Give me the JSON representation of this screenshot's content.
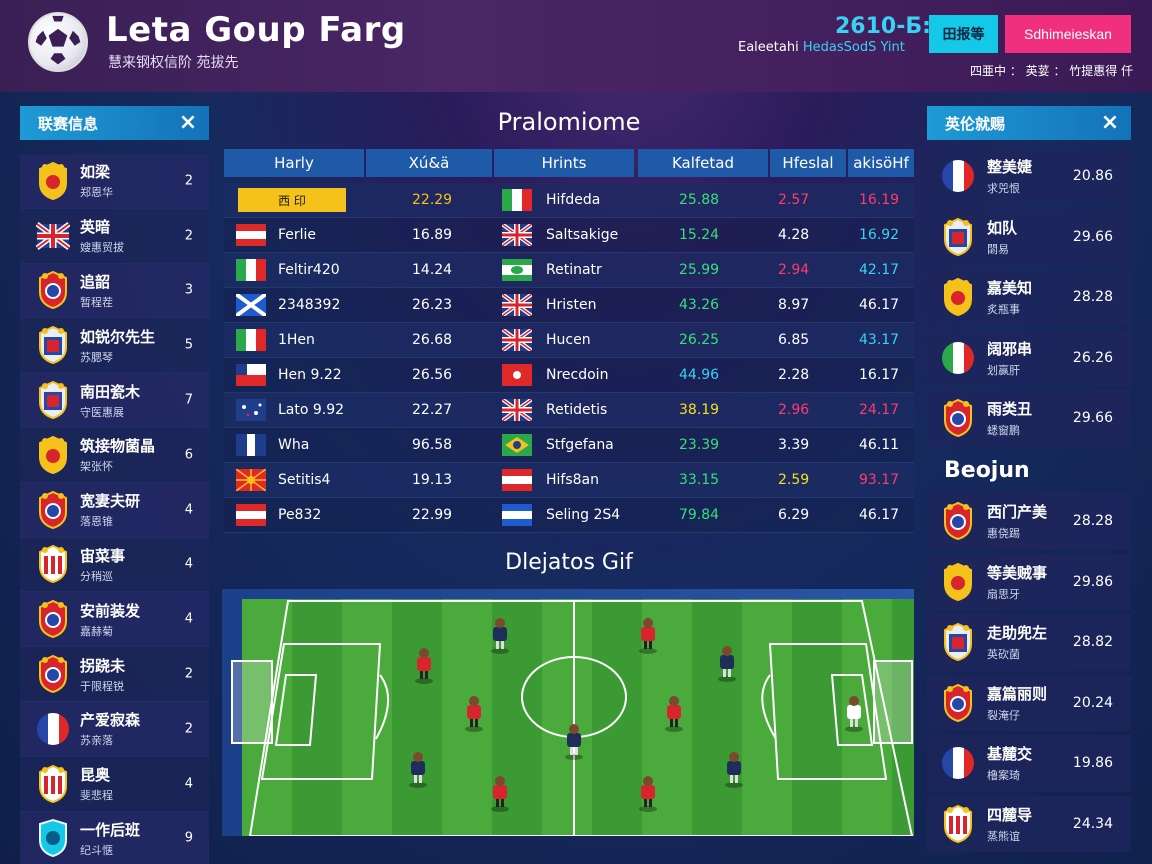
{
  "header": {
    "title": "Leta Goup Farg",
    "subtitle": "慧来钢权信阶 苑拔先",
    "score": "2610-Б:",
    "sub_prefix": "Ealeetahi",
    "sub_accent": "HedasSodS Yint",
    "btn_primary": "田报等",
    "btn_secondary": "Sdhimeieskan",
    "right_text": "四亜中 ： 英荽 ： 竹提惠得 仟"
  },
  "left_panel": {
    "title": "联赛信息",
    "close_icon": "×",
    "items": [
      {
        "name": "如梁",
        "sub": "郑恩华",
        "count": "2",
        "badge": "crest-yellow"
      },
      {
        "name": "英暗",
        "sub": "嫂惠贸拔",
        "count": "2",
        "badge": "uk"
      },
      {
        "name": "追韶",
        "sub": "暂程茬",
        "count": "3",
        "badge": "crest-red"
      },
      {
        "name": "如锐尔先生",
        "sub": "苏腮琴",
        "count": "5",
        "badge": "crest-blue"
      },
      {
        "name": "南田瓷木",
        "sub": "守医惠展",
        "count": "7",
        "badge": "crest-blue"
      },
      {
        "name": "筑接物菌晶",
        "sub": "架张怀",
        "count": "6",
        "badge": "crest-yellow"
      },
      {
        "name": "宽妻夫研",
        "sub": "落恩锥",
        "count": "4",
        "badge": "crest-red"
      },
      {
        "name": "宙菜事",
        "sub": "分稍巡",
        "count": "4",
        "badge": "crest-stripe"
      },
      {
        "name": "安前装发",
        "sub": "嘉赫菊",
        "count": "4",
        "badge": "crest-red"
      },
      {
        "name": "拐跷未",
        "sub": "于限程锐",
        "count": "2",
        "badge": "crest-red"
      },
      {
        "name": "产爱寂森",
        "sub": "苏亲落",
        "count": "2",
        "badge": "fr"
      },
      {
        "name": "昆奥",
        "sub": "斐悲程",
        "count": "4",
        "badge": "crest-stripe"
      },
      {
        "name": "一作后班",
        "sub": "纪斗惬",
        "count": "9",
        "badge": "crest-cyan"
      }
    ]
  },
  "center": {
    "title": "Pralomiome",
    "columns": [
      "Harly",
      "Xú&ä",
      "Hrints",
      "Kalfetad",
      "Hfeslal",
      "akisöHf"
    ],
    "rows": [
      {
        "tag": "西 印",
        "left_flag": "",
        "left": "",
        "v1": "22.29",
        "right_flag": "it",
        "right": "Hifdeda",
        "c1": "25.88",
        "c2": "2.57",
        "c3": "16.19",
        "c1col": "#35e07a",
        "c2col": "#ff3b6b",
        "c3col": "#ff3b6b",
        "v1col": "#f4c21a"
      },
      {
        "tag": "",
        "left_flag": "at",
        "left": "Ferlie",
        "v1": "16.89",
        "right_flag": "uk",
        "right": "Saltsakige",
        "c1": "15.24",
        "c2": "4.28",
        "c3": "16.92",
        "c1col": "#35e07a",
        "c2col": "#ffffff",
        "c3col": "#39d1f4",
        "v1col": "#ffffff"
      },
      {
        "tag": "",
        "left_flag": "it",
        "left": "Feltir420",
        "v1": "14.24",
        "right_flag": "br",
        "right": "Retinatr",
        "c1": "25.99",
        "c2": "2.94",
        "c3": "42.17",
        "c1col": "#35e07a",
        "c2col": "#ff3b6b",
        "c3col": "#39d1f4",
        "v1col": "#ffffff"
      },
      {
        "tag": "",
        "left_flag": "sc",
        "left": "2348392",
        "v1": "26.23",
        "right_flag": "uk",
        "right": "Hristen",
        "c1": "43.26",
        "c2": "8.97",
        "c3": "46.17",
        "c1col": "#35e07a",
        "c2col": "#ffffff",
        "c3col": "#ffffff",
        "v1col": "#ffffff"
      },
      {
        "tag": "",
        "left_flag": "it",
        "left": "1Hen",
        "v1": "26.68",
        "right_flag": "uk",
        "right": "Hucen",
        "c1": "26.25",
        "c2": "6.85",
        "c3": "43.17",
        "c1col": "#35e07a",
        "c2col": "#ffffff",
        "c3col": "#39d1f4",
        "v1col": "#ffffff"
      },
      {
        "tag": "",
        "left_flag": "cl",
        "left": "Hen 9.22",
        "v1": "26.56",
        "right_flag": "hk",
        "right": "Nrecdoin",
        "c1": "44.96",
        "c2": "2.28",
        "c3": "16.17",
        "c1col": "#39d1f4",
        "c2col": "#ffffff",
        "c3col": "#ffffff",
        "v1col": "#ffffff"
      },
      {
        "tag": "",
        "left_flag": "au",
        "left": "Lato 9.92",
        "v1": "22.27",
        "right_flag": "uk",
        "right": "Retidetis",
        "c1": "38.19",
        "c2": "2.96",
        "c3": "24.17",
        "c1col": "#f4e01a",
        "c2col": "#ff3b6b",
        "c3col": "#ff3b6b",
        "v1col": "#ffffff"
      },
      {
        "tag": "",
        "left_flag": "gu",
        "left": "Wha",
        "v1": "96.58",
        "right_flag": "brz",
        "right": "Stfgefana",
        "c1": "23.39",
        "c2": "3.39",
        "c3": "46.11",
        "c1col": "#35e07a",
        "c2col": "#ffffff",
        "c3col": "#ffffff",
        "v1col": "#ffffff"
      },
      {
        "tag": "",
        "left_flag": "mk",
        "left": "Setitis4",
        "v1": "19.13",
        "right_flag": "at",
        "right": "Hifs8an",
        "c1": "33.15",
        "c2": "2.59",
        "c3": "93.17",
        "c1col": "#35e07a",
        "c2col": "#f4e01a",
        "c3col": "#ff3b6b",
        "v1col": "#ffffff"
      },
      {
        "tag": "",
        "left_flag": "at",
        "left": "Pe832",
        "v1": "22.99",
        "right_flag": "hn",
        "right": "Seling 2S4",
        "c1": "79.84",
        "c2": "6.29",
        "c3": "46.17",
        "c1col": "#35e07a",
        "c2col": "#ffffff",
        "c3col": "#ffffff",
        "v1col": "#ffffff"
      }
    ],
    "pitch_title": "Dlejatos Gif"
  },
  "right_panel": {
    "title": "英伦就赐",
    "close_icon": "×",
    "items": [
      {
        "name": "整美婕",
        "sub": "求兕恨",
        "value": "20.86",
        "badge": "fr"
      },
      {
        "name": "如队",
        "sub": "閟易",
        "value": "29.66",
        "badge": "crest-blue"
      },
      {
        "name": "嘉美知",
        "sub": "炙瓶事",
        "value": "28.28",
        "badge": "crest-yellow"
      },
      {
        "name": "阔邪串",
        "sub": "划赢肝",
        "value": "26.26",
        "badge": "it"
      },
      {
        "name": "雨类丑",
        "sub": "蟋窗鹏",
        "value": "29.66",
        "badge": "crest-red"
      }
    ],
    "section_title": "Beojun",
    "items2": [
      {
        "name": "西门产美",
        "sub": "惠侥踢",
        "value": "28.28",
        "badge": "crest-red"
      },
      {
        "name": "等美贼事",
        "sub": "扇思牙",
        "value": "29.86",
        "badge": "crest-yellow"
      },
      {
        "name": "走助兜左",
        "sub": "英砍菌",
        "value": "28.82",
        "badge": "crest-blue"
      },
      {
        "name": "嘉篇丽则",
        "sub": "裂淹仔",
        "value": "20.24",
        "badge": "crest-red"
      },
      {
        "name": "基麓交",
        "sub": "橹案琦",
        "value": "19.86",
        "badge": "fr"
      },
      {
        "name": "四麓导",
        "sub": "蒸熊谊",
        "value": "24.34",
        "badge": "crest-stripe"
      }
    ]
  },
  "colors": {
    "accent_cyan": "#14c8e8",
    "accent_pink": "#f0307e",
    "panel_header": "#1e9ad6",
    "table_header": "#1f5aa8",
    "pitch_green": "#3f9a35",
    "team_red": "#d8242c",
    "team_navy": "#1f2d5a"
  }
}
